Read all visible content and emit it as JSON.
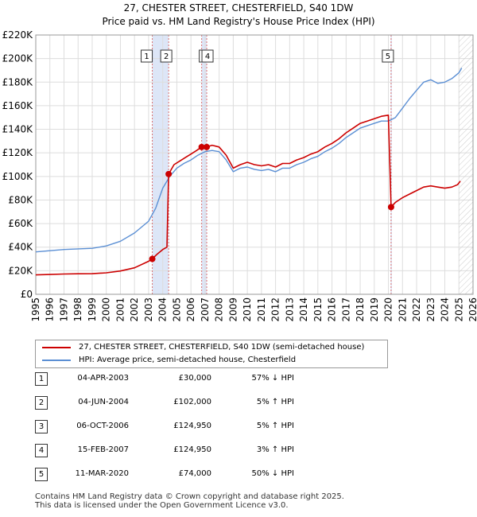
{
  "title": {
    "line1": "27, CHESTER STREET, CHESTERFIELD, S40 1DW",
    "line2": "Price paid vs. HM Land Registry's House Price Index (HPI)"
  },
  "legend": {
    "price_paid": "27, CHESTER STREET, CHESTERFIELD, S40 1DW (semi-detached house)",
    "hpi": "HPI: Average price, semi-detached house, Chesterfield"
  },
  "colors": {
    "price_paid": "#cc0000",
    "hpi": "#5b8fd4",
    "sale_band": "#dde6f7",
    "sale_line": "#d97070",
    "grid": "#dddddd"
  },
  "sales": [
    {
      "num": "1",
      "date": "04-APR-2003",
      "price": "£30,000",
      "hpi_rel": "57% ↓ HPI"
    },
    {
      "num": "2",
      "date": "04-JUN-2004",
      "price": "£102,000",
      "hpi_rel": "5% ↑ HPI"
    },
    {
      "num": "3",
      "date": "06-OCT-2006",
      "price": "£124,950",
      "hpi_rel": "5% ↑ HPI"
    },
    {
      "num": "4",
      "date": "15-FEB-2007",
      "price": "£124,950",
      "hpi_rel": "3% ↑ HPI"
    },
    {
      "num": "5",
      "date": "11-MAR-2020",
      "price": "£74,000",
      "hpi_rel": "50% ↓ HPI"
    }
  ],
  "footer": {
    "line1": "Contains HM Land Registry data © Crown copyright and database right 2025.",
    "line2": "This data is licensed under the Open Government Licence v3.0."
  },
  "chart_data": {
    "type": "line",
    "title": "27, CHESTER STREET, CHESTERFIELD, S40 1DW",
    "subtitle": "Price paid vs. HM Land Registry's House Price Index (HPI)",
    "xlim": [
      1995,
      2026
    ],
    "ylim": [
      0,
      220000
    ],
    "x_ticks": [
      1995,
      1996,
      1997,
      1998,
      1999,
      2000,
      2001,
      2002,
      2003,
      2004,
      2005,
      2006,
      2007,
      2008,
      2009,
      2010,
      2011,
      2012,
      2013,
      2014,
      2015,
      2016,
      2017,
      2018,
      2019,
      2020,
      2021,
      2022,
      2023,
      2024,
      2025,
      2026
    ],
    "y_ticks": [
      {
        "value": 0,
        "label": "£0"
      },
      {
        "value": 20000,
        "label": "£20K"
      },
      {
        "value": 40000,
        "label": "£40K"
      },
      {
        "value": 60000,
        "label": "£60K"
      },
      {
        "value": 80000,
        "label": "£80K"
      },
      {
        "value": 100000,
        "label": "£100K"
      },
      {
        "value": 120000,
        "label": "£120K"
      },
      {
        "value": 140000,
        "label": "£140K"
      },
      {
        "value": 160000,
        "label": "£160K"
      },
      {
        "value": 180000,
        "label": "£180K"
      },
      {
        "value": 200000,
        "label": "£200K"
      },
      {
        "value": 220000,
        "label": "£220K"
      }
    ],
    "grid": true,
    "legend_position": "below",
    "sale_markers": [
      {
        "label": "1",
        "x": 2003.26,
        "y": 30000
      },
      {
        "label": "2",
        "x": 2004.42,
        "y": 102000
      },
      {
        "label": "3",
        "x": 2006.76,
        "y": 124950
      },
      {
        "label": "4",
        "x": 2007.12,
        "y": 124950
      },
      {
        "label": "5",
        "x": 2020.19,
        "y": 74000
      }
    ],
    "series": [
      {
        "name": "27, CHESTER STREET, CHESTERFIELD, S40 1DW (semi-detached house)",
        "points": [
          [
            1995.0,
            16500
          ],
          [
            1996.0,
            16800
          ],
          [
            1997.0,
            17200
          ],
          [
            1998.0,
            17400
          ],
          [
            1999.0,
            17500
          ],
          [
            2000.0,
            18200
          ],
          [
            2001.0,
            19800
          ],
          [
            2002.0,
            22500
          ],
          [
            2003.0,
            28000
          ],
          [
            2003.26,
            30000
          ],
          [
            2003.6,
            34000
          ],
          [
            2004.0,
            38000
          ],
          [
            2004.3,
            40000
          ],
          [
            2004.42,
            102000
          ],
          [
            2004.8,
            110000
          ],
          [
            2005.2,
            113000
          ],
          [
            2005.6,
            116000
          ],
          [
            2006.0,
            119000
          ],
          [
            2006.4,
            122000
          ],
          [
            2006.76,
            124950
          ],
          [
            2007.12,
            124950
          ],
          [
            2007.5,
            126500
          ],
          [
            2008.0,
            125000
          ],
          [
            2008.5,
            118000
          ],
          [
            2009.0,
            107000
          ],
          [
            2009.5,
            110000
          ],
          [
            2010.0,
            112000
          ],
          [
            2010.5,
            110000
          ],
          [
            2011.0,
            109000
          ],
          [
            2011.5,
            110000
          ],
          [
            2012.0,
            108000
          ],
          [
            2012.5,
            111000
          ],
          [
            2013.0,
            111000
          ],
          [
            2013.5,
            114000
          ],
          [
            2014.0,
            116000
          ],
          [
            2014.5,
            119000
          ],
          [
            2015.0,
            121000
          ],
          [
            2015.5,
            125000
          ],
          [
            2016.0,
            128000
          ],
          [
            2016.5,
            132000
          ],
          [
            2017.0,
            137000
          ],
          [
            2017.5,
            141000
          ],
          [
            2018.0,
            145000
          ],
          [
            2018.5,
            147000
          ],
          [
            2019.0,
            149000
          ],
          [
            2019.5,
            151000
          ],
          [
            2020.0,
            152000
          ],
          [
            2020.19,
            74000
          ],
          [
            2020.5,
            78000
          ],
          [
            2021.0,
            82000
          ],
          [
            2021.5,
            85000
          ],
          [
            2022.0,
            88000
          ],
          [
            2022.5,
            91000
          ],
          [
            2023.0,
            92000
          ],
          [
            2023.5,
            91000
          ],
          [
            2024.0,
            90000
          ],
          [
            2024.5,
            91000
          ],
          [
            2024.9,
            93000
          ],
          [
            2025.1,
            96000
          ]
        ]
      },
      {
        "name": "HPI: Average price, semi-detached house, Chesterfield",
        "points": [
          [
            1995.0,
            36000
          ],
          [
            1996.0,
            37000
          ],
          [
            1997.0,
            38000
          ],
          [
            1998.0,
            38500
          ],
          [
            1999.0,
            39000
          ],
          [
            2000.0,
            41000
          ],
          [
            2001.0,
            45000
          ],
          [
            2002.0,
            52000
          ],
          [
            2003.0,
            62000
          ],
          [
            2003.5,
            73000
          ],
          [
            2004.0,
            90000
          ],
          [
            2004.5,
            100000
          ],
          [
            2005.0,
            107000
          ],
          [
            2005.5,
            111000
          ],
          [
            2006.0,
            114000
          ],
          [
            2006.5,
            118000
          ],
          [
            2007.0,
            121000
          ],
          [
            2007.5,
            122000
          ],
          [
            2008.0,
            121000
          ],
          [
            2008.5,
            114000
          ],
          [
            2009.0,
            104000
          ],
          [
            2009.5,
            107000
          ],
          [
            2010.0,
            108000
          ],
          [
            2010.5,
            106000
          ],
          [
            2011.0,
            105000
          ],
          [
            2011.5,
            106000
          ],
          [
            2012.0,
            104000
          ],
          [
            2012.5,
            107000
          ],
          [
            2013.0,
            107000
          ],
          [
            2013.5,
            110000
          ],
          [
            2014.0,
            112000
          ],
          [
            2014.5,
            115000
          ],
          [
            2015.0,
            117000
          ],
          [
            2015.5,
            121000
          ],
          [
            2016.0,
            124000
          ],
          [
            2016.5,
            128000
          ],
          [
            2017.0,
            133000
          ],
          [
            2017.5,
            137000
          ],
          [
            2018.0,
            141000
          ],
          [
            2018.5,
            143000
          ],
          [
            2019.0,
            145000
          ],
          [
            2019.5,
            147000
          ],
          [
            2020.0,
            147000
          ],
          [
            2020.5,
            150000
          ],
          [
            2021.0,
            158000
          ],
          [
            2021.5,
            166000
          ],
          [
            2022.0,
            173000
          ],
          [
            2022.5,
            180000
          ],
          [
            2023.0,
            182000
          ],
          [
            2023.5,
            179000
          ],
          [
            2024.0,
            180000
          ],
          [
            2024.5,
            183000
          ],
          [
            2025.0,
            188000
          ],
          [
            2025.2,
            192000
          ]
        ]
      }
    ]
  }
}
